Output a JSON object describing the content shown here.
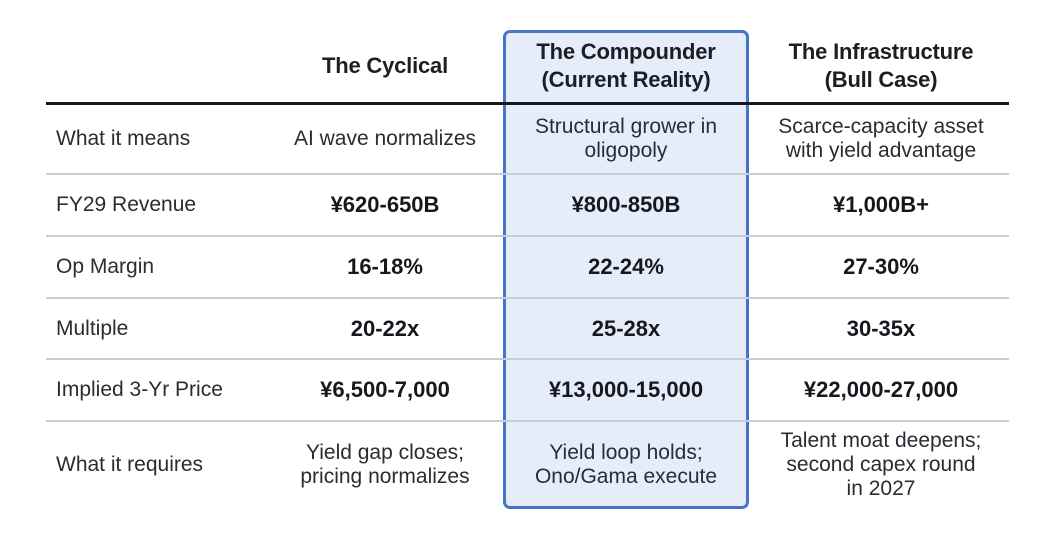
{
  "columns": [
    {
      "title_line1": "The Cyclical",
      "title_line2": ""
    },
    {
      "title_line1": "The Compounder",
      "title_line2": "(Current Reality)"
    },
    {
      "title_line1": "The Infrastructure",
      "title_line2": "(Bull Case)"
    }
  ],
  "highlighted_column": "The Compounder (Current Reality)",
  "colors": {
    "highlight_fill": "#e5edfb",
    "highlight_border": "#4774c6",
    "rule": "#c8ccd3",
    "header_rule": "#16181d"
  },
  "rows": [
    {
      "label": "What it means",
      "cells": [
        {
          "line1": "AI wave normalizes",
          "line2": ""
        },
        {
          "line1": "Structural grower in",
          "line2": "oligopoly"
        },
        {
          "line1": "Scarce-capacity asset",
          "line2": "with yield advantage"
        }
      ]
    },
    {
      "label": "FY29 Revenue",
      "cells": [
        {
          "line1": "¥620-650B"
        },
        {
          "line1": "¥800-850B"
        },
        {
          "line1": "¥1,000B+"
        }
      ]
    },
    {
      "label": "Op Margin",
      "cells": [
        {
          "line1": "16-18%"
        },
        {
          "line1": "22-24%"
        },
        {
          "line1": "27-30%"
        }
      ]
    },
    {
      "label": "Multiple",
      "cells": [
        {
          "line1": "20-22x"
        },
        {
          "line1": "25-28x"
        },
        {
          "line1": "30-35x"
        }
      ]
    },
    {
      "label": "Implied 3-Yr Price",
      "cells": [
        {
          "line1": "¥6,500-7,000"
        },
        {
          "line1": "¥13,000-15,000"
        },
        {
          "line1": "¥22,000-27,000"
        }
      ]
    },
    {
      "label": "What it requires",
      "cells": [
        {
          "line1": "Yield gap closes;",
          "line2": "pricing normalizes",
          "line3": ""
        },
        {
          "line1": "Yield loop holds;",
          "line2": "Ono/Gama execute",
          "line3": ""
        },
        {
          "line1": "Talent moat deepens;",
          "line2": "second capex round",
          "line3": "in 2027"
        }
      ]
    }
  ]
}
